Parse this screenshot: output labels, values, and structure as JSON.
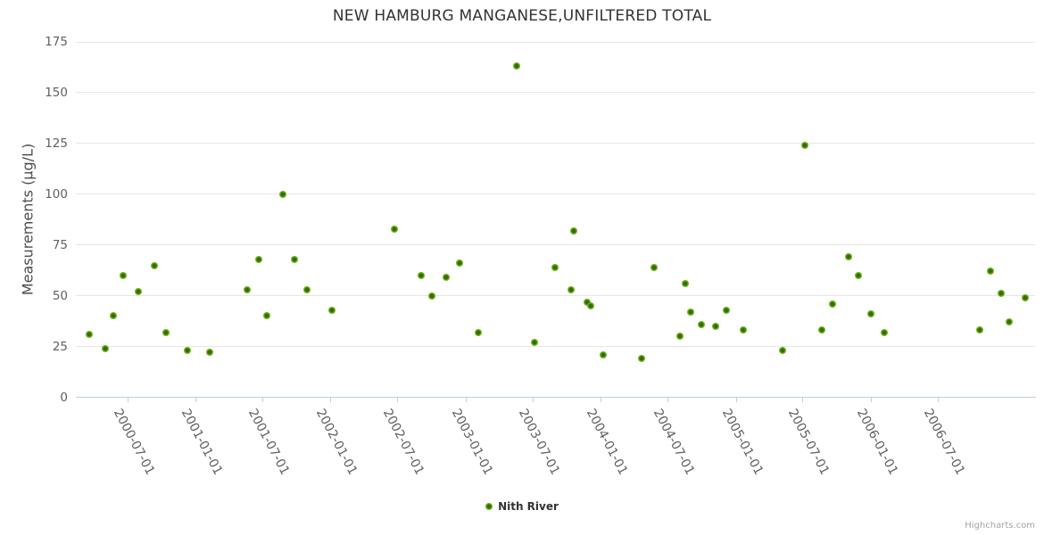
{
  "credits": "Highcharts.com",
  "legend": {
    "label": "Nith River"
  },
  "colors": {
    "series_green": "#76b41e",
    "series_green_dark": "#2f6b05",
    "title_text": "#333333",
    "axis_label_text": "#606060",
    "grid_line": "#e6e6e6",
    "axis_line": "#c0d0e0",
    "credits_text": "#a5a5a5"
  },
  "chart_data": {
    "type": "scatter",
    "title": "NEW HAMBURG MANGANESE,UNFILTERED TOTAL",
    "xlabel": "",
    "ylabel": "Measurements (µg/L)",
    "x_type": "datetime",
    "xlim": [
      "2000-02-12",
      "2007-03-22"
    ],
    "ylim": [
      0,
      175
    ],
    "y_ticks": [
      0,
      25,
      50,
      75,
      100,
      125,
      150,
      175
    ],
    "x_ticks": [
      "2000-07-01",
      "2001-01-01",
      "2001-07-01",
      "2002-01-01",
      "2002-07-01",
      "2003-01-01",
      "2003-07-01",
      "2004-01-01",
      "2004-07-01",
      "2005-01-01",
      "2005-07-01",
      "2006-01-01",
      "2006-07-01"
    ],
    "grid": "horizontal-only",
    "legend_position": "bottom-center",
    "point_format": [
      "date",
      "value_ug_per_L"
    ],
    "series": [
      {
        "name": "Nith River",
        "color": "#76b41e",
        "color_center": "#2f6b05",
        "points": [
          [
            "2000-03-19",
            31
          ],
          [
            "2000-05-02",
            24
          ],
          [
            "2000-05-23",
            40
          ],
          [
            "2000-06-19",
            60
          ],
          [
            "2000-07-30",
            52
          ],
          [
            "2000-09-11",
            65
          ],
          [
            "2000-10-13",
            32
          ],
          [
            "2000-12-10",
            23
          ],
          [
            "2001-02-08",
            22
          ],
          [
            "2001-05-20",
            53
          ],
          [
            "2001-06-21",
            68
          ],
          [
            "2001-07-13",
            40
          ],
          [
            "2001-08-25",
            100
          ],
          [
            "2001-09-25",
            68
          ],
          [
            "2001-10-29",
            53
          ],
          [
            "2002-01-04",
            43
          ],
          [
            "2002-06-22",
            83
          ],
          [
            "2002-09-03",
            60
          ],
          [
            "2002-10-02",
            50
          ],
          [
            "2002-11-09",
            59
          ],
          [
            "2002-12-16",
            66
          ],
          [
            "2003-02-04",
            32
          ],
          [
            "2003-05-19",
            163
          ],
          [
            "2003-07-07",
            27
          ],
          [
            "2003-08-31",
            64
          ],
          [
            "2003-10-14",
            53
          ],
          [
            "2003-10-21",
            82
          ],
          [
            "2003-11-26",
            47
          ],
          [
            "2003-12-06",
            45
          ],
          [
            "2004-01-08",
            21
          ],
          [
            "2004-04-21",
            19
          ],
          [
            "2004-05-25",
            64
          ],
          [
            "2004-08-03",
            30
          ],
          [
            "2004-08-18",
            56
          ],
          [
            "2004-09-01",
            42
          ],
          [
            "2004-09-30",
            36
          ],
          [
            "2004-11-08",
            35
          ],
          [
            "2004-12-07",
            43
          ],
          [
            "2005-01-22",
            33
          ],
          [
            "2005-05-08",
            23
          ],
          [
            "2005-07-07",
            124
          ],
          [
            "2005-08-22",
            33
          ],
          [
            "2005-09-20",
            46
          ],
          [
            "2005-11-02",
            69
          ],
          [
            "2005-11-29",
            60
          ],
          [
            "2006-01-02",
            41
          ],
          [
            "2006-02-07",
            32
          ],
          [
            "2006-10-23",
            33
          ],
          [
            "2006-11-21",
            62
          ],
          [
            "2006-12-20",
            51
          ],
          [
            "2007-01-11",
            37
          ],
          [
            "2007-02-24",
            49
          ]
        ]
      }
    ]
  }
}
